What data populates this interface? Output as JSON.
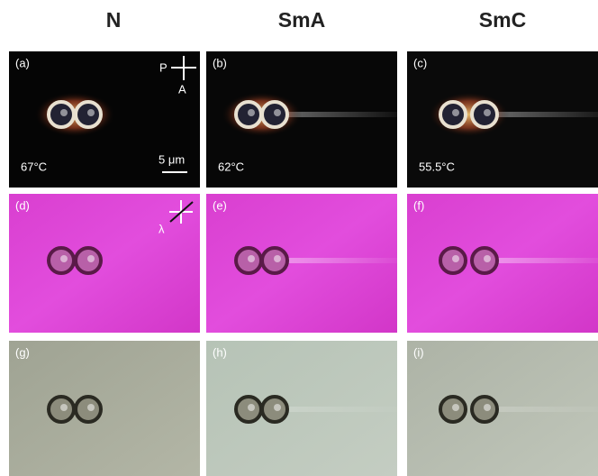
{
  "columns": [
    "N",
    "SmA",
    "SmC"
  ],
  "panels": [
    {
      "label": "(a)",
      "temperature": "67°C"
    },
    {
      "label": "(b)",
      "temperature": "62°C"
    },
    {
      "label": "(c)",
      "temperature": "55.5°C"
    },
    {
      "label": "(d)"
    },
    {
      "label": "(e)"
    },
    {
      "label": "(f)"
    },
    {
      "label": "(g)"
    },
    {
      "label": "(h)"
    },
    {
      "label": "(i)"
    }
  ],
  "annotations": {
    "polarizer": "P",
    "analyzer": "A",
    "scale_bar": "5 μm",
    "wave_plate": "λ"
  }
}
